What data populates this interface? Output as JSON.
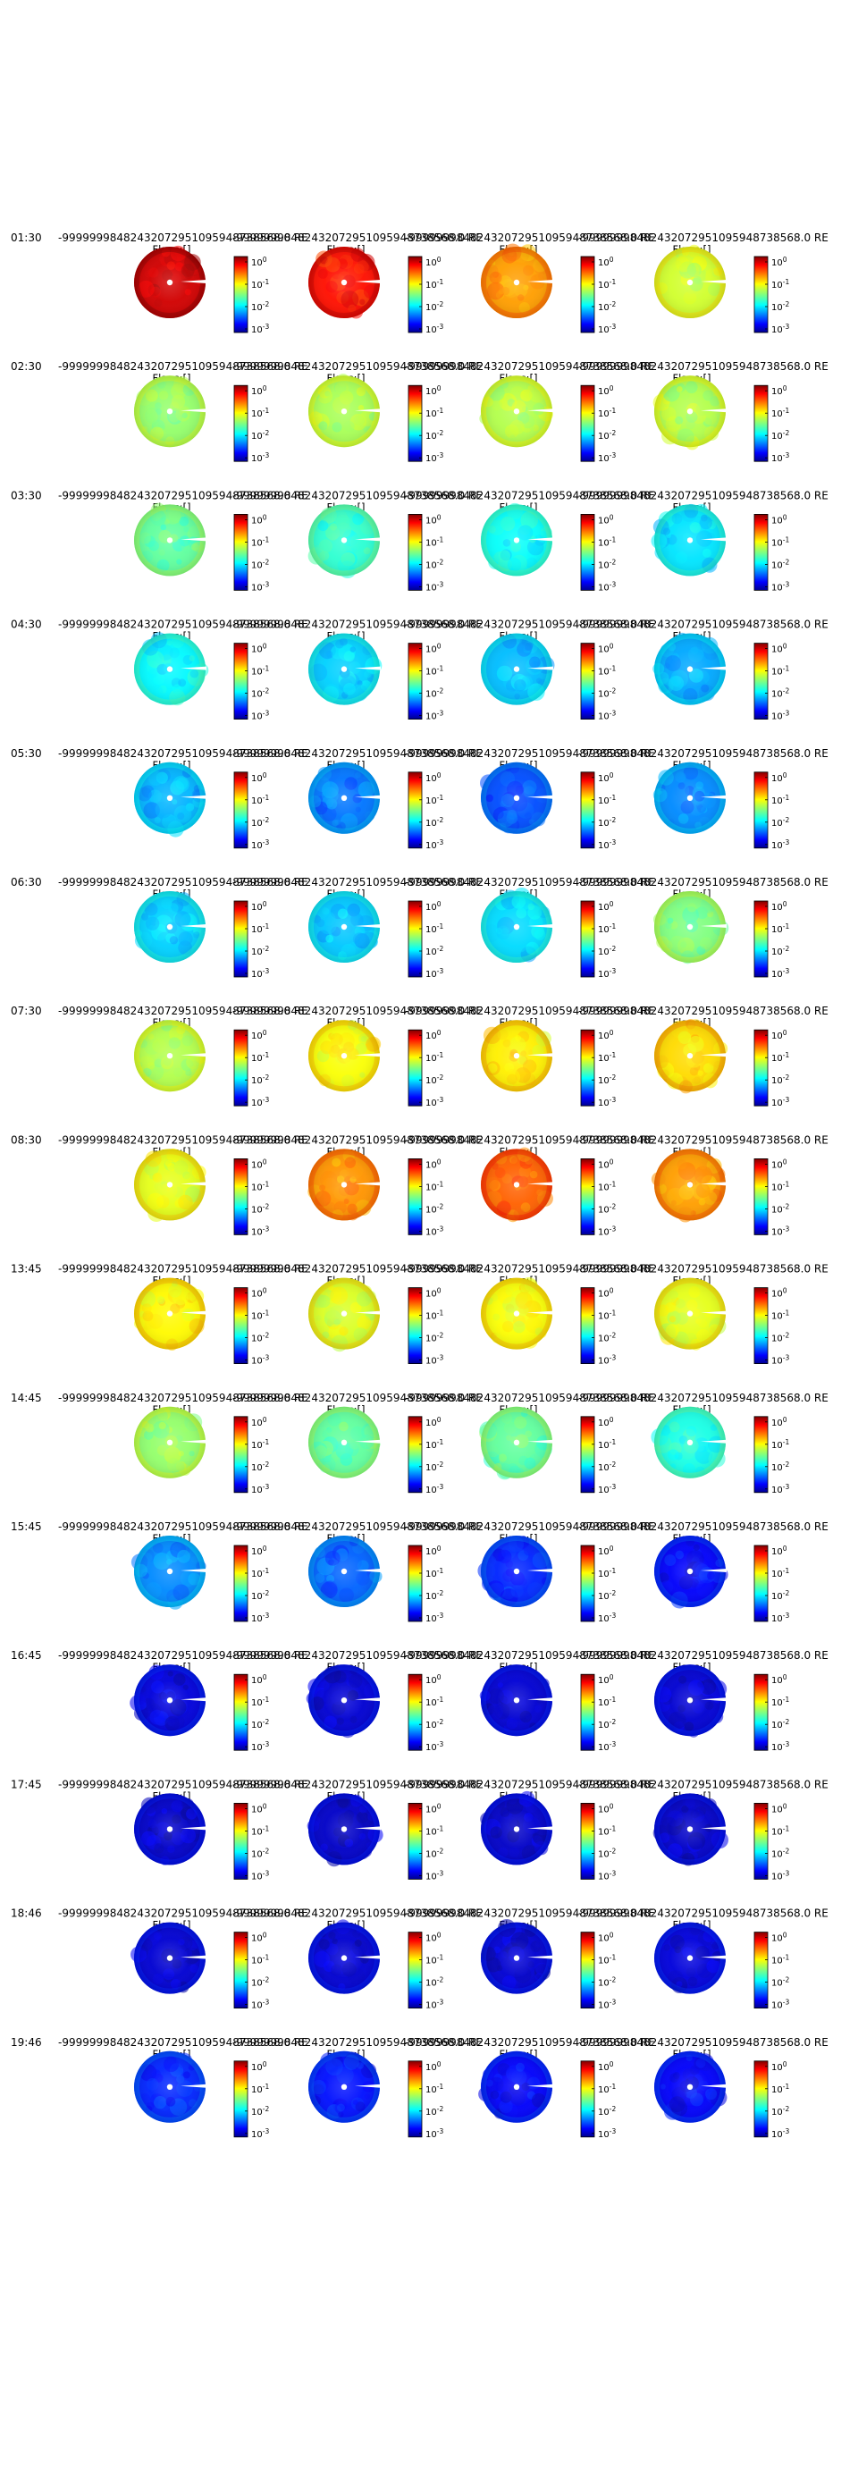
{
  "chart_data": {
    "type": "heatmap",
    "layout": "grid of polar sky-brightness maps, 15 rows by 4 columns",
    "colormap": "jet",
    "colorbar_scale": "log",
    "colorbar_range": [
      0.001,
      1
    ],
    "colorbar_tick_base": "10",
    "colorbar_tick_exponents": [
      "0",
      "-1",
      "-2",
      "-3"
    ],
    "header_text": "-99999998482432072951095948738568.0 RE",
    "flags_label": "Flags:[]",
    "rows": [
      {
        "time": "01:30",
        "levels": [
          0.92,
          0.86,
          0.72,
          0.58
        ]
      },
      {
        "time": "02:30",
        "levels": [
          0.52,
          0.54,
          0.55,
          0.55
        ]
      },
      {
        "time": "03:30",
        "levels": [
          0.47,
          0.42,
          0.38,
          0.35
        ]
      },
      {
        "time": "04:30",
        "levels": [
          0.37,
          0.33,
          0.31,
          0.29
        ]
      },
      {
        "time": "05:30",
        "levels": [
          0.3,
          0.24,
          0.2,
          0.26
        ]
      },
      {
        "time": "06:30",
        "levels": [
          0.33,
          0.32,
          0.34,
          0.5
        ]
      },
      {
        "time": "07:30",
        "levels": [
          0.55,
          0.62,
          0.64,
          0.66
        ]
      },
      {
        "time": "08:30",
        "levels": [
          0.6,
          0.73,
          0.78,
          0.72
        ]
      },
      {
        "time": "13:45",
        "levels": [
          0.63,
          0.59,
          0.62,
          0.6
        ]
      },
      {
        "time": "14:45",
        "levels": [
          0.52,
          0.47,
          0.47,
          0.4
        ]
      },
      {
        "time": "15:45",
        "levels": [
          0.26,
          0.22,
          0.16,
          0.12
        ]
      },
      {
        "time": "16:45",
        "levels": [
          0.09,
          0.08,
          0.08,
          0.08
        ]
      },
      {
        "time": "17:45",
        "levels": [
          0.07,
          0.07,
          0.07,
          0.07
        ]
      },
      {
        "time": "18:46",
        "levels": [
          0.08,
          0.08,
          0.08,
          0.09
        ]
      },
      {
        "time": "19:46",
        "levels": [
          0.16,
          0.14,
          0.12,
          0.12
        ]
      }
    ]
  }
}
